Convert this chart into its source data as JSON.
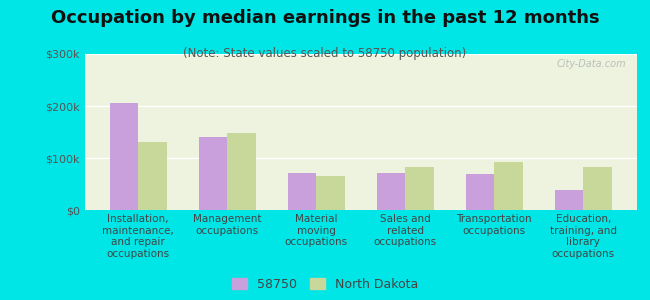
{
  "title": "Occupation by median earnings in the past 12 months",
  "subtitle": "(Note: State values scaled to 58750 population)",
  "categories": [
    "Installation,\nmaintenance,\nand repair\noccupations",
    "Management\noccupations",
    "Material\nmoving\noccupations",
    "Sales and\nrelated\noccupations",
    "Transportation\noccupations",
    "Education,\ntraining, and\nlibrary\noccupations"
  ],
  "values_58750": [
    205000,
    140000,
    72000,
    72000,
    70000,
    38000
  ],
  "values_nd": [
    130000,
    148000,
    65000,
    82000,
    92000,
    82000
  ],
  "color_58750": "#c9a0dc",
  "color_nd": "#c8d89a",
  "background_chart_top": "#e8f0c8",
  "background_chart_bottom": "#f5f8e8",
  "background_fig": "#00e5e5",
  "ylim": [
    0,
    300000
  ],
  "yticks": [
    0,
    100000,
    200000,
    300000
  ],
  "ytick_labels": [
    "$0",
    "$100k",
    "$200k",
    "$300k"
  ],
  "legend_labels": [
    "58750",
    "North Dakota"
  ],
  "watermark": "City-Data.com",
  "title_fontsize": 13,
  "subtitle_fontsize": 8.5,
  "tick_label_fontsize": 7.5,
  "ytick_label_fontsize": 8
}
